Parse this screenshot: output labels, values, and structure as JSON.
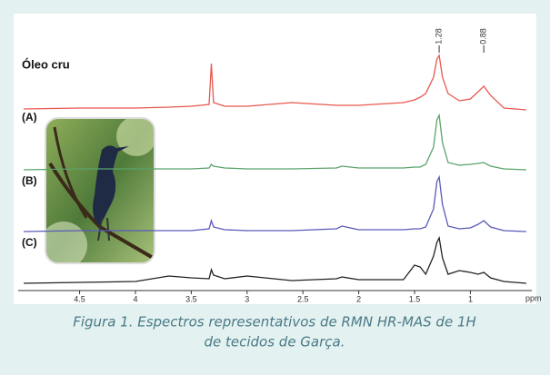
{
  "chart_data": {
    "type": "line",
    "x": [
      5.0,
      4.5,
      4.0,
      3.7,
      3.5,
      3.34,
      3.32,
      3.3,
      3.2,
      3.0,
      2.6,
      2.2,
      2.15,
      2.0,
      1.6,
      1.5,
      1.45,
      1.4,
      1.33,
      1.3,
      1.28,
      1.25,
      1.2,
      1.1,
      1.0,
      0.93,
      0.88,
      0.82,
      0.7,
      0.5
    ],
    "series": [
      {
        "name": "Óleo cru",
        "color": "#e8584f",
        "values": [
          5,
          6,
          6,
          7,
          8,
          10,
          55,
          12,
          8,
          8,
          12,
          9,
          9,
          9,
          12,
          15,
          18,
          22,
          40,
          60,
          64,
          40,
          22,
          14,
          16,
          24,
          30,
          20,
          6,
          4
        ]
      },
      {
        "name": "(A)",
        "color": "#5aa36a",
        "values": [
          0,
          1,
          1,
          1,
          1,
          2,
          6,
          4,
          2,
          1,
          1,
          2,
          4,
          2,
          2,
          3,
          3,
          6,
          25,
          55,
          60,
          30,
          8,
          5,
          6,
          7,
          8,
          4,
          1,
          0
        ]
      },
      {
        "name": "(B)",
        "color": "#5a5ab8",
        "values": [
          0,
          1,
          1,
          1,
          1,
          3,
          12,
          5,
          2,
          1,
          1,
          3,
          6,
          2,
          2,
          3,
          3,
          5,
          25,
          55,
          60,
          30,
          6,
          3,
          4,
          8,
          12,
          5,
          1,
          0
        ]
      },
      {
        "name": "(C)",
        "color": "#222222",
        "values": [
          0,
          1,
          2,
          8,
          6,
          5,
          15,
          9,
          5,
          8,
          3,
          5,
          7,
          4,
          4,
          20,
          18,
          10,
          30,
          45,
          50,
          28,
          10,
          14,
          12,
          10,
          12,
          6,
          2,
          0
        ]
      }
    ],
    "xlim": [
      5.05,
      0.45
    ],
    "xticks": [
      4.5,
      4.0,
      3.5,
      3.0,
      2.5,
      2.0,
      1.5,
      1.0
    ],
    "xlabel": "ppm",
    "peak_labels": [
      1.28,
      0.88
    ],
    "caption": [
      "Figura 1. Espectros representativos de RMN HR-MAS de 1H",
      "de tecidos de Garça."
    ]
  }
}
